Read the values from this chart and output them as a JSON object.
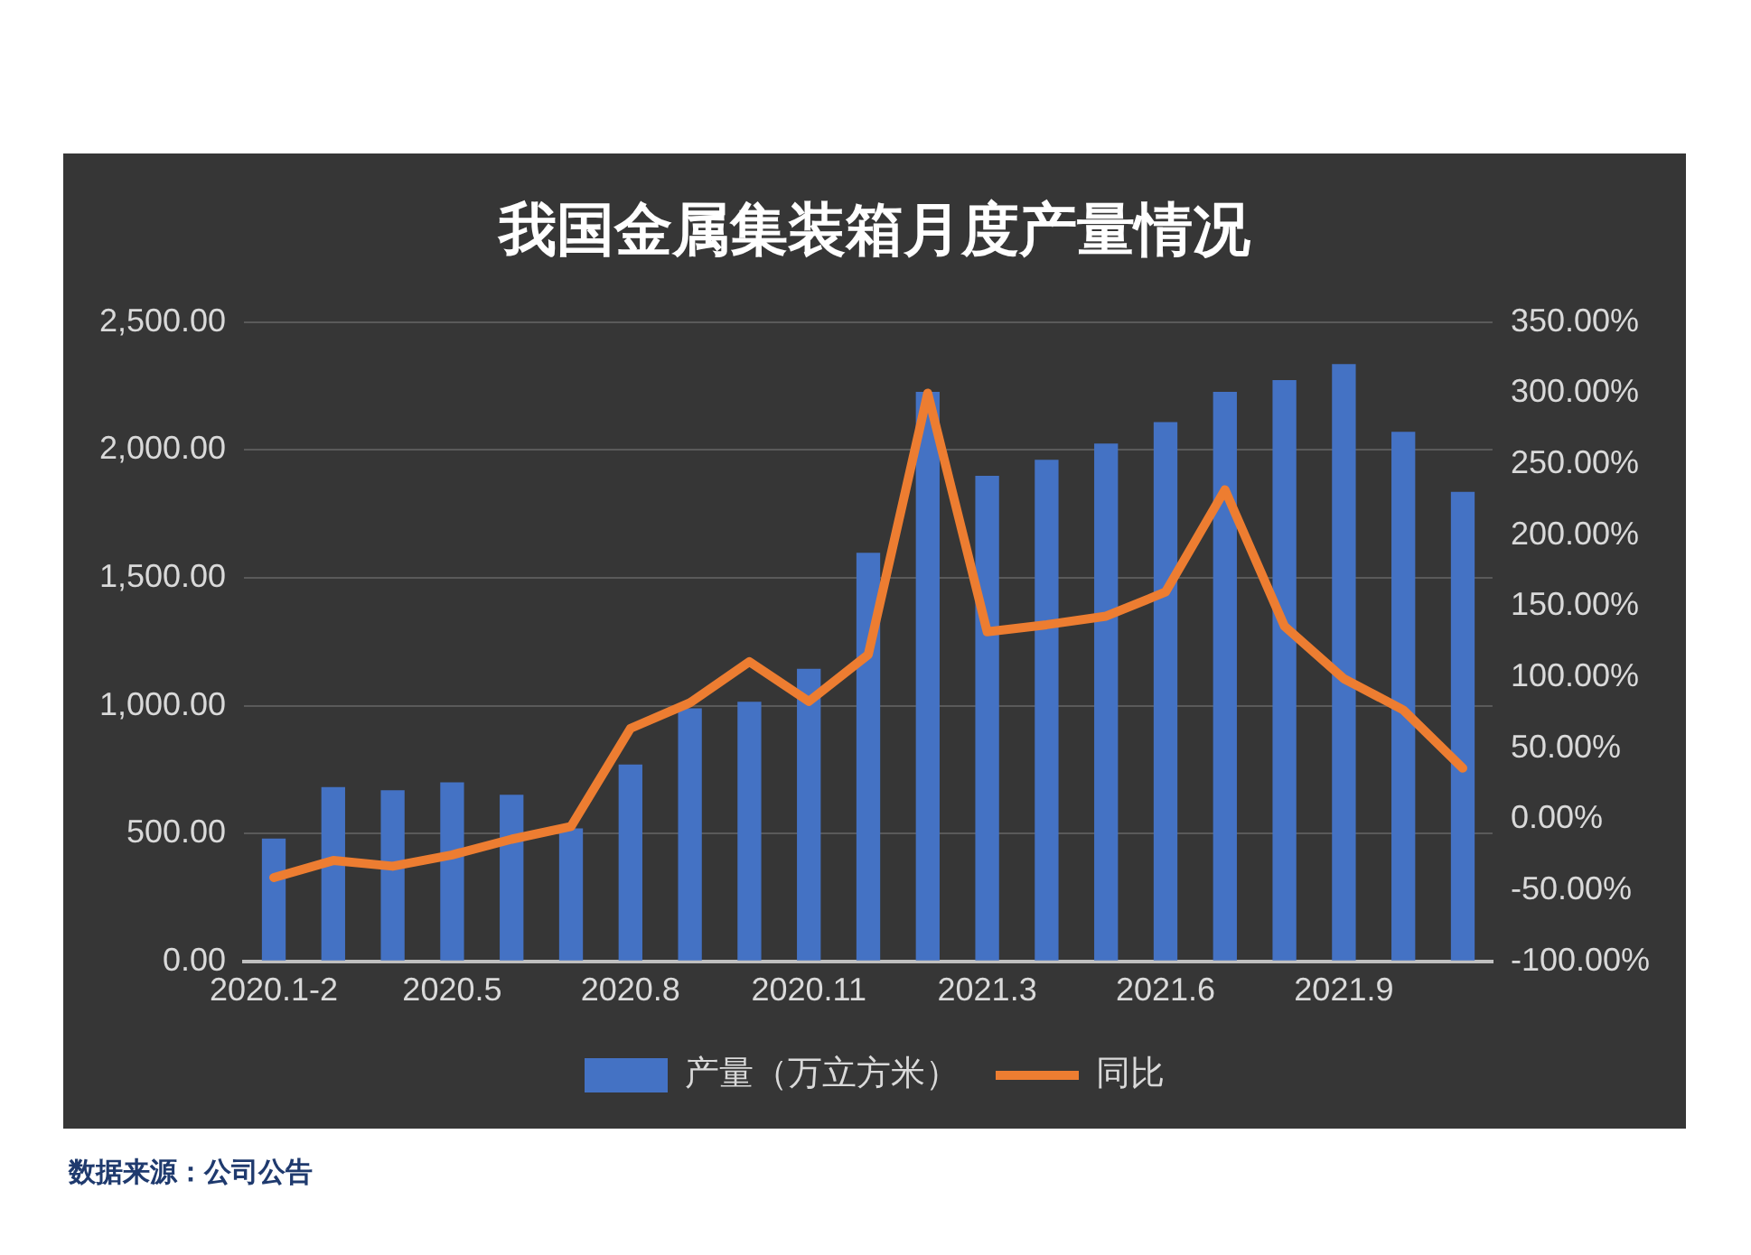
{
  "chart_data": {
    "type": "bar",
    "title": "我国金属集装箱月度产量情况",
    "categories": [
      "2020.1-2",
      null,
      null,
      "2020.5",
      null,
      null,
      "2020.8",
      null,
      null,
      "2020.11",
      null,
      null,
      "2021.3",
      null,
      null,
      "2021.6",
      null,
      null,
      "2021.9",
      null,
      null
    ],
    "series": [
      {
        "name": "产量（万立方米）",
        "color": "#4472c4",
        "values": [
          480,
          682,
          669,
          700,
          652,
          520,
          770,
          990,
          1015,
          1144,
          1598,
          2227,
          1899,
          1962,
          2025,
          2109,
          2227,
          2273,
          2336,
          2071,
          1836
        ]
      },
      {
        "name": "同比",
        "type": "line",
        "axis": "y2",
        "color": "#ed7d31",
        "values": [
          -41,
          -29,
          -33,
          -25,
          -14,
          -5,
          64,
          82,
          111,
          83,
          116,
          300,
          132,
          137,
          143,
          160,
          232,
          136,
          99,
          77,
          36
        ]
      }
    ],
    "ylim": [
      0,
      2500
    ],
    "yticks": [
      {
        "value": 0,
        "label": "0.00"
      },
      {
        "value": 500,
        "label": "500.00"
      },
      {
        "value": 1000,
        "label": "1,000.00"
      },
      {
        "value": 1500,
        "label": "1,500.00"
      },
      {
        "value": 2000,
        "label": "2,000.00"
      },
      {
        "value": 2500,
        "label": "2,500.00"
      }
    ],
    "y2lim": [
      -100,
      350
    ],
    "y2ticks": [
      {
        "value": -100,
        "label": "-100.00%"
      },
      {
        "value": -50,
        "label": "-50.00%"
      },
      {
        "value": 0,
        "label": "0.00%"
      },
      {
        "value": 50,
        "label": "50.00%"
      },
      {
        "value": 100,
        "label": "100.00%"
      },
      {
        "value": 150,
        "label": "150.00%"
      },
      {
        "value": 200,
        "label": "200.00%"
      },
      {
        "value": 250,
        "label": "250.00%"
      },
      {
        "value": 300,
        "label": "300.00%"
      },
      {
        "value": 350,
        "label": "350.00%"
      }
    ],
    "grid": "y",
    "legend": "bottom",
    "marker": "none",
    "annotations": [
      "数据来源：公司公告"
    ]
  }
}
